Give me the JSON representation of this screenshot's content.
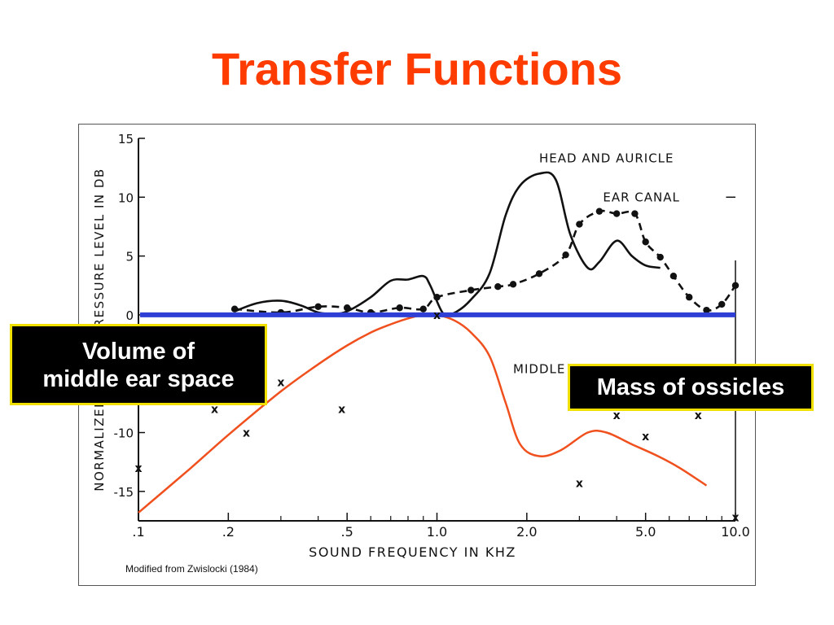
{
  "slide": {
    "title": "Transfer Functions"
  },
  "callouts": {
    "volume": [
      "Volume of",
      "middle ear space"
    ],
    "mass": "Mass of ossicles"
  },
  "colors": {
    "title": "#ff3c00",
    "zero_line": "#2f3fd6",
    "middle_ear_curve": "#f0501e",
    "callout_border": "#f0e000"
  },
  "chart_data": {
    "type": "line",
    "xscale": "log",
    "xlim": [
      0.1,
      10.0
    ],
    "ylim": [
      -17.5,
      15
    ],
    "xlabel": "SOUND FREQUENCY IN KHZ",
    "ylabel": "NORMALIZED SOUND PRESSURE LEVEL IN DB",
    "x_ticks": [
      {
        "value": 0.1,
        "label": ".1"
      },
      {
        "value": 0.2,
        "label": ".2"
      },
      {
        "value": 0.5,
        "label": ".5"
      },
      {
        "value": 1.0,
        "label": "1.0"
      },
      {
        "value": 2.0,
        "label": "2.0"
      },
      {
        "value": 5.0,
        "label": "5.0"
      },
      {
        "value": 10.0,
        "label": "10.0"
      }
    ],
    "x_minor_ticks": [
      0.3,
      0.4,
      0.6,
      0.7,
      0.8,
      0.9,
      3,
      4,
      6,
      7,
      8,
      9
    ],
    "y_ticks": [
      {
        "value": 15,
        "label": "15"
      },
      {
        "value": 10,
        "label": "10"
      },
      {
        "value": 5,
        "label": "5"
      },
      {
        "value": 0,
        "label": "0"
      },
      {
        "value": -10,
        "label": "-10"
      },
      {
        "value": -15,
        "label": "-15"
      }
    ],
    "source_note": "Modified from Zwislocki (1984)",
    "series": [
      {
        "name": "HEAD AND AURICLE",
        "style": "solid",
        "x": [
          0.21,
          0.25,
          0.3,
          0.35,
          0.4,
          0.45,
          0.5,
          0.6,
          0.7,
          0.8,
          0.9,
          0.95,
          1.05,
          1.15,
          1.3,
          1.5,
          1.7,
          1.9,
          2.2,
          2.5,
          2.8,
          3.2,
          3.5,
          4.0,
          4.5,
          5.0,
          5.6
        ],
        "y": [
          0.3,
          1.0,
          1.2,
          0.8,
          0.2,
          0.1,
          0.3,
          1.5,
          2.9,
          3.0,
          3.3,
          2.5,
          0.1,
          0.2,
          1.3,
          3.5,
          8.5,
          11.0,
          12.0,
          11.5,
          6.8,
          4.0,
          4.5,
          6.3,
          5.0,
          4.2,
          4.0
        ]
      },
      {
        "name": "EAR CANAL",
        "style": "dashed",
        "x": [
          0.21,
          0.3,
          0.4,
          0.5,
          0.6,
          0.75,
          0.9,
          1.0,
          1.3,
          1.6,
          1.8,
          2.2,
          2.7,
          3.0,
          3.5,
          4.0,
          4.6,
          5.0,
          5.6,
          6.2,
          7.0,
          8.0,
          9.0,
          10.0
        ],
        "y": [
          0.5,
          0.2,
          0.7,
          0.6,
          0.2,
          0.6,
          0.5,
          1.5,
          2.1,
          2.4,
          2.6,
          3.5,
          5.1,
          7.7,
          8.8,
          8.6,
          8.6,
          6.2,
          4.9,
          3.3,
          1.5,
          0.4,
          0.9,
          2.5
        ]
      },
      {
        "name": "MIDDLE EAR",
        "style": "solid",
        "x": [
          0.1,
          0.15,
          0.2,
          0.3,
          0.4,
          0.5,
          0.6,
          0.7,
          0.8,
          0.9,
          1.0,
          1.15,
          1.3,
          1.5,
          1.7,
          1.9,
          2.2,
          2.6,
          3.2,
          3.7,
          4.5,
          5.5,
          6.5,
          8.0
        ],
        "y": [
          -16.8,
          -13.0,
          -10.2,
          -6.5,
          -4.2,
          -2.6,
          -1.5,
          -0.8,
          -0.3,
          0.0,
          0.0,
          -0.5,
          -1.5,
          -3.5,
          -7.5,
          -11.0,
          -12.0,
          -11.5,
          -10.0,
          -10.0,
          -11.0,
          -12.0,
          -13.0,
          -14.5
        ]
      }
    ],
    "x_markers": [
      {
        "x": 0.1,
        "y": -13.0
      },
      {
        "x": 0.18,
        "y": -8.0
      },
      {
        "x": 0.23,
        "y": -10.0
      },
      {
        "x": 0.3,
        "y": -5.7
      },
      {
        "x": 0.48,
        "y": -8.0
      },
      {
        "x": 1.0,
        "y": 0.0
      },
      {
        "x": 3.0,
        "y": -14.3
      },
      {
        "x": 4.0,
        "y": -8.5
      },
      {
        "x": 5.0,
        "y": -10.3
      },
      {
        "x": 7.5,
        "y": -8.5
      },
      {
        "x": 10.0,
        "y": -17.2
      }
    ],
    "zero_line": {
      "y": 0
    }
  }
}
